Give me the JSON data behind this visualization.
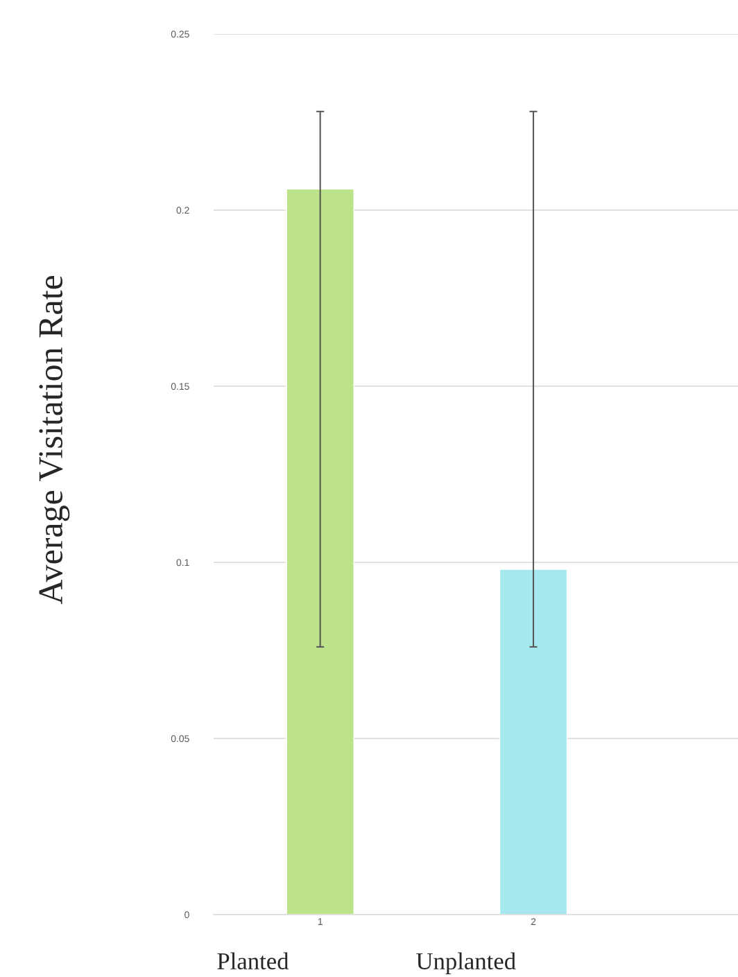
{
  "chart_data": {
    "type": "bar",
    "ylabel": "Average Visitation Rate",
    "categories": [
      "1",
      "2"
    ],
    "values": [
      0.206,
      0.098
    ],
    "colors": [
      "#bce38a",
      "#a5e9ef"
    ],
    "errors": [
      [
        0.076,
        0.228
      ],
      [
        0.076,
        0.228
      ]
    ],
    "ylim": [
      0,
      0.25
    ],
    "yticks": [
      0,
      0.05,
      0.1,
      0.15,
      0.2,
      0.25
    ],
    "grid": "y",
    "annotations": [
      "Planted",
      "Unplanted"
    ]
  }
}
